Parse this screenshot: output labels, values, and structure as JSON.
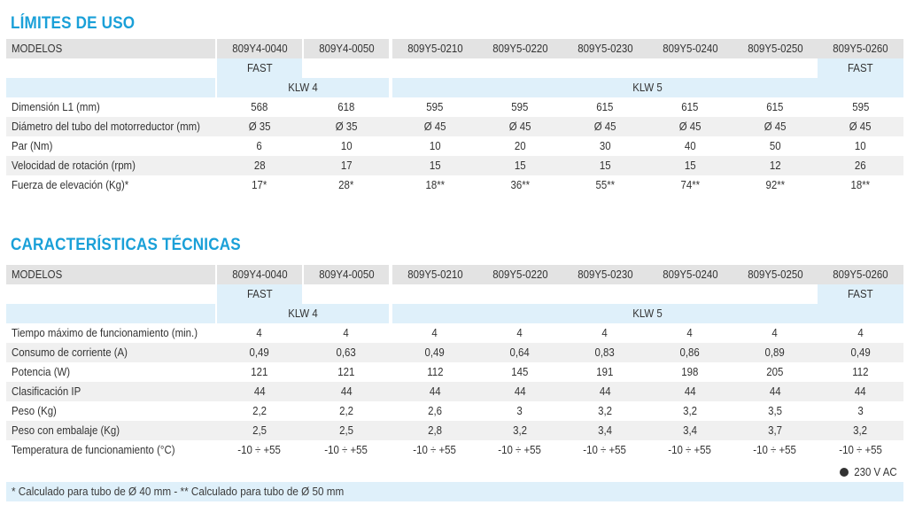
{
  "limits": {
    "title": "LÍMITES DE USO",
    "models_label": "MODELOS",
    "models": [
      "809Y4-0040",
      "809Y4-0050",
      "809Y5-0210",
      "809Y5-0220",
      "809Y5-0230",
      "809Y5-0240",
      "809Y5-0250",
      "809Y5-0260"
    ],
    "fast_label": "FAST",
    "group_klw4": "KLW 4",
    "group_klw5": "KLW 5",
    "rows": [
      {
        "label": "Dimensión L1 (mm)",
        "values": [
          "568",
          "618",
          "595",
          "595",
          "615",
          "615",
          "615",
          "595"
        ]
      },
      {
        "label": "Diámetro del tubo del motorreductor (mm)",
        "values": [
          "Ø 35",
          "Ø 35",
          "Ø 45",
          "Ø 45",
          "Ø 45",
          "Ø 45",
          "Ø 45",
          "Ø 45"
        ]
      },
      {
        "label": "Par (Nm)",
        "values": [
          "6",
          "10",
          "10",
          "20",
          "30",
          "40",
          "50",
          "10"
        ]
      },
      {
        "label": "Velocidad de rotación (rpm)",
        "values": [
          "28",
          "17",
          "15",
          "15",
          "15",
          "15",
          "12",
          "26"
        ]
      },
      {
        "label": "Fuerza de elevación (Kg)*",
        "values": [
          "17*",
          "28*",
          "18**",
          "36**",
          "55**",
          "74**",
          "92**",
          "18**"
        ]
      }
    ]
  },
  "tech": {
    "title": "CARACTERÍSTICAS TÉCNICAS",
    "models_label": "MODELOS",
    "models": [
      "809Y4-0040",
      "809Y4-0050",
      "809Y5-0210",
      "809Y5-0220",
      "809Y5-0230",
      "809Y5-0240",
      "809Y5-0250",
      "809Y5-0260"
    ],
    "fast_label": "FAST",
    "group_klw4": "KLW 4",
    "group_klw5": "KLW 5",
    "rows": [
      {
        "label": "Tiempo máximo de funcionamiento  (min.)",
        "values": [
          "4",
          "4",
          "4",
          "4",
          "4",
          "4",
          "4",
          "4"
        ]
      },
      {
        "label": "Consumo de corriente (A)",
        "values": [
          "0,49",
          "0,63",
          "0,49",
          "0,64",
          "0,83",
          "0,86",
          "0,89",
          "0,49"
        ]
      },
      {
        "label": "Potencia  (W)",
        "values": [
          "121",
          "121",
          "112",
          "145",
          "191",
          "198",
          "205",
          "112"
        ]
      },
      {
        "label": "Clasificación IP",
        "values": [
          "44",
          "44",
          "44",
          "44",
          "44",
          "44",
          "44",
          "44"
        ]
      },
      {
        "label": "Peso (Kg)",
        "values": [
          "2,2",
          "2,2",
          "2,6",
          "3",
          "3,2",
          "3,2",
          "3,5",
          "3"
        ]
      },
      {
        "label": "Peso con embalaje (Kg)",
        "values": [
          "2,5",
          "2,5",
          "2,8",
          "3,2",
          "3,4",
          "3,4",
          "3,7",
          "3,2"
        ]
      },
      {
        "label": "Temperatura de funcionamiento  (°C)",
        "values": [
          "-10 ÷ +55",
          "-10 ÷ +55",
          "-10 ÷ +55",
          "-10 ÷ +55",
          "-10 ÷ +55",
          "-10 ÷ +55",
          "-10 ÷ +55",
          "-10 ÷ +55"
        ]
      }
    ],
    "power_note": "230 V AC"
  },
  "footer_note": "* Calculado para tubo de Ø 40 mm - ** Calculado para tubo de Ø 50 mm"
}
